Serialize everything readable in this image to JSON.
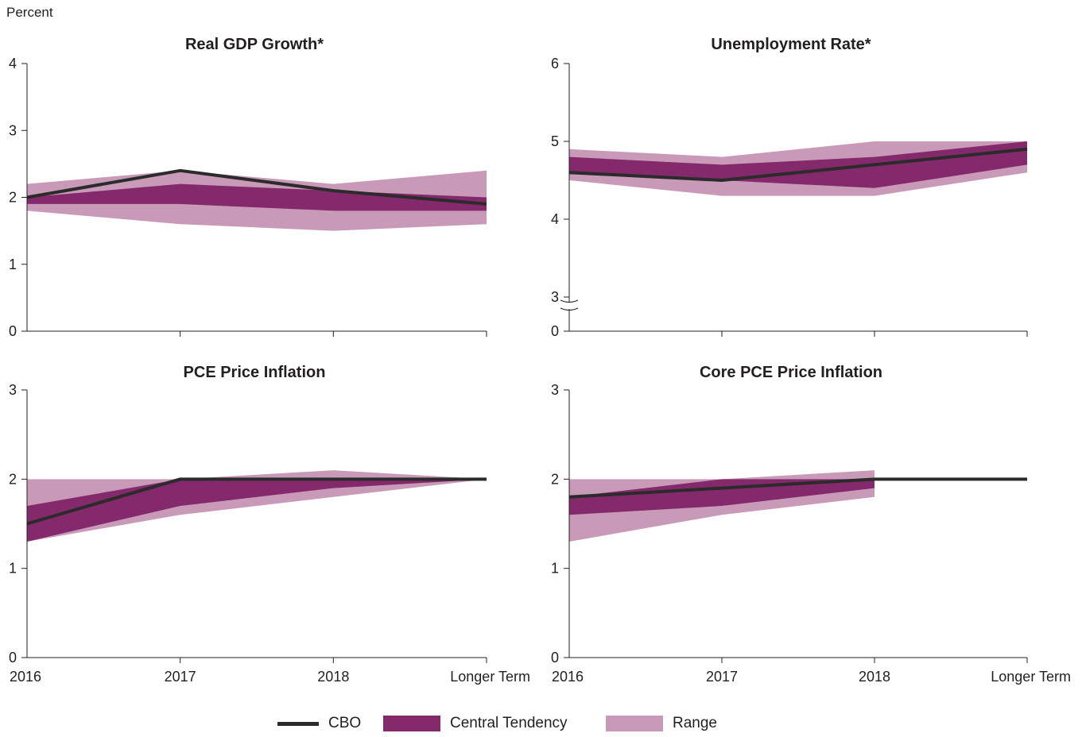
{
  "unit_label": "Percent",
  "colors": {
    "cbo": "#2b2b2b",
    "central": "#84296b",
    "range": "#c99ab7",
    "axis": "#231f20"
  },
  "legend": {
    "cbo": "CBO",
    "central": "Central Tendency",
    "range": "Range"
  },
  "chart_data": [
    {
      "type": "area",
      "title": "Real GDP Growth*",
      "categories": [
        "2016",
        "2017",
        "2018",
        "Longer Term"
      ],
      "ylim": [
        0,
        4
      ],
      "yticks": [
        "0",
        "1",
        "2",
        "3",
        "4"
      ],
      "series": [
        {
          "name": "Range",
          "low": [
            1.8,
            1.6,
            1.5,
            1.6
          ],
          "high": [
            2.2,
            2.4,
            2.2,
            2.4
          ]
        },
        {
          "name": "Central Tendency",
          "low": [
            1.9,
            1.9,
            1.8,
            1.8
          ],
          "high": [
            2.0,
            2.2,
            2.1,
            2.0
          ]
        },
        {
          "name": "CBO",
          "values": [
            2.0,
            2.4,
            2.1,
            1.9
          ]
        }
      ]
    },
    {
      "type": "area",
      "title": "Unemployment Rate*",
      "categories": [
        "2016",
        "2017",
        "2018",
        "Longer Term"
      ],
      "ylim": [
        3,
        6
      ],
      "axis_break": true,
      "yticks": [
        "0",
        "3",
        "4",
        "5",
        "6"
      ],
      "series": [
        {
          "name": "Range",
          "low": [
            4.5,
            4.3,
            4.3,
            4.6
          ],
          "high": [
            4.9,
            4.8,
            5.0,
            5.0
          ]
        },
        {
          "name": "Central Tendency",
          "low": [
            4.6,
            4.5,
            4.4,
            4.7
          ],
          "high": [
            4.8,
            4.7,
            4.8,
            5.0
          ]
        },
        {
          "name": "CBO",
          "values": [
            4.6,
            4.5,
            4.7,
            4.9
          ]
        }
      ]
    },
    {
      "type": "area",
      "title": "PCE Price Inflation",
      "categories": [
        "2016",
        "2017",
        "2018",
        "Longer Term"
      ],
      "ylim": [
        0,
        3
      ],
      "yticks": [
        "0",
        "1",
        "2",
        "3"
      ],
      "series": [
        {
          "name": "Range",
          "low": [
            1.3,
            1.6,
            1.8,
            2.0
          ],
          "high": [
            2.0,
            2.0,
            2.1,
            2.0
          ]
        },
        {
          "name": "Central Tendency",
          "low": [
            1.3,
            1.7,
            1.9,
            2.0
          ],
          "high": [
            1.7,
            2.0,
            2.0,
            2.0
          ]
        },
        {
          "name": "CBO",
          "values": [
            1.5,
            2.0,
            2.0,
            2.0
          ]
        }
      ]
    },
    {
      "type": "area",
      "title": "Core PCE Price Inflation",
      "categories": [
        "2016",
        "2017",
        "2018",
        "Longer Term"
      ],
      "ylim": [
        0,
        3
      ],
      "yticks": [
        "0",
        "1",
        "2",
        "3"
      ],
      "series": [
        {
          "name": "Range",
          "low": [
            1.3,
            1.6,
            1.8
          ],
          "high": [
            2.0,
            2.0,
            2.1
          ]
        },
        {
          "name": "Central Tendency",
          "low": [
            1.6,
            1.7,
            1.9
          ],
          "high": [
            1.8,
            2.0,
            2.0
          ]
        },
        {
          "name": "CBO",
          "values": [
            1.8,
            1.9,
            2.0,
            2.0
          ]
        }
      ]
    }
  ]
}
